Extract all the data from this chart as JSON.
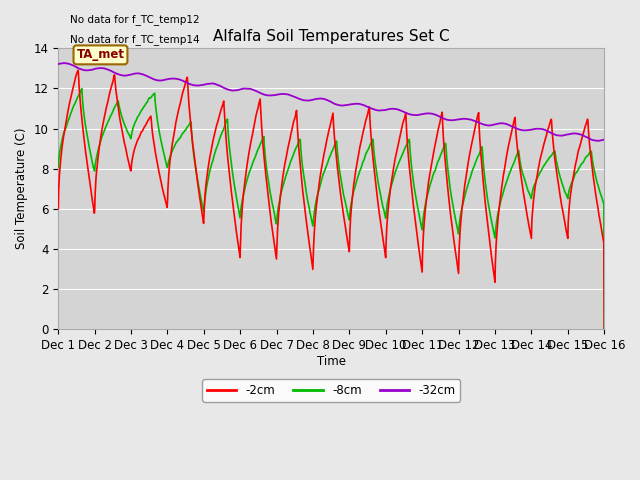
{
  "title": "Alfalfa Soil Temperatures Set C",
  "xlabel": "Time",
  "ylabel": "Soil Temperature (C)",
  "no_data_text": [
    "No data for f_TC_temp12",
    "No data for f_TC_temp14"
  ],
  "ta_met_label": "TA_met",
  "legend_entries": [
    "-2cm",
    "-8cm",
    "-32cm"
  ],
  "legend_colors": [
    "#ff0000",
    "#00bb00",
    "#9900cc"
  ],
  "ylim": [
    0,
    14
  ],
  "xlim": [
    0,
    15
  ],
  "yticks": [
    0,
    2,
    4,
    6,
    8,
    10,
    12,
    14
  ],
  "xtick_labels": [
    "Dec 1",
    "Dec 2",
    "Dec 3",
    "Dec 4",
    "Dec 5",
    "Dec 6",
    "Dec 7",
    "Dec 8",
    "Dec 9",
    "Dec 10",
    "Dec 11",
    "Dec 12",
    "Dec 13",
    "Dec 14",
    "Dec 15",
    "Dec 16"
  ],
  "background_color": "#e8e8e8",
  "plot_bg_color": "#d4d4d4",
  "grid_color": "#ffffff"
}
